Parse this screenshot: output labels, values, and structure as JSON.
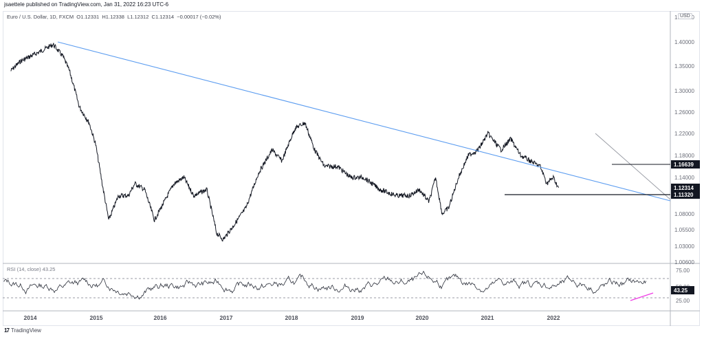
{
  "publisher_line": "jsaettele published on TradingView.com, Jan 31, 2022 16:23 UTC-6",
  "legend": {
    "symbol": "Euro / U.S. Dollar, 1D, FXCM",
    "ohlc": "O1.12331  H1.12338  L1.12312  C1.12314  −0.00017 (−0.02%)"
  },
  "currency_badge": "USD",
  "rsi_legend": "RSI (14, close)  43.25",
  "branding": "TradingView",
  "colors": {
    "price_line": "#131722",
    "long_trendline": "#5b9cf0",
    "short_trendline": "#9598a1",
    "horizontal_levels": "#131722",
    "rsi_divergence": "#f03ce6",
    "tag_bg": "#131722"
  },
  "price_tags": [
    {
      "label": "1.16639",
      "y": 239
    },
    {
      "label": "1.12314",
      "y": 273
    },
    {
      "label": "1.11320",
      "y": 283
    }
  ],
  "rsi_tag": {
    "label": "43.25",
    "y": 422
  },
  "chart_data": [
    {
      "type": "line",
      "title": "Euro / U.S. Dollar, 1D, FXCM",
      "xlabel": "",
      "ylabel": "USD",
      "x_ticks": [
        "2014",
        "2015",
        "2016",
        "2017",
        "2018",
        "2019",
        "2020",
        "2021",
        "2022"
      ],
      "y_ticks": [
        "1.40000",
        "1.35000",
        "1.30000",
        "1.26000",
        "1.22000",
        "1.18000",
        "1.14000",
        "1.08000",
        "1.05500",
        "1.03000",
        "1.00600"
      ],
      "ylim": [
        1.006,
        1.42
      ],
      "grid": false,
      "series": [
        {
          "name": "EURUSD close",
          "x": [
            2013.7,
            2013.85,
            2014.0,
            2014.15,
            2014.35,
            2014.5,
            2014.6,
            2014.75,
            2014.9,
            2015.0,
            2015.1,
            2015.2,
            2015.35,
            2015.5,
            2015.6,
            2015.75,
            2015.9,
            2016.0,
            2016.2,
            2016.35,
            2016.5,
            2016.7,
            2016.85,
            2016.95,
            2017.1,
            2017.3,
            2017.5,
            2017.7,
            2017.85,
            2018.05,
            2018.2,
            2018.35,
            2018.5,
            2018.7,
            2018.9,
            2019.1,
            2019.35,
            2019.6,
            2019.8,
            2019.95,
            2020.1,
            2020.2,
            2020.3,
            2020.4,
            2020.55,
            2020.7,
            2020.85,
            2021.0,
            2021.2,
            2021.35,
            2021.5,
            2021.65,
            2021.8,
            2021.9,
            2022.0,
            2022.08
          ],
          "values": [
            1.34,
            1.36,
            1.37,
            1.38,
            1.395,
            1.37,
            1.34,
            1.27,
            1.24,
            1.2,
            1.13,
            1.07,
            1.11,
            1.11,
            1.13,
            1.12,
            1.07,
            1.09,
            1.13,
            1.14,
            1.11,
            1.12,
            1.05,
            1.04,
            1.06,
            1.09,
            1.15,
            1.19,
            1.17,
            1.23,
            1.24,
            1.19,
            1.16,
            1.16,
            1.14,
            1.14,
            1.12,
            1.11,
            1.11,
            1.12,
            1.1,
            1.14,
            1.08,
            1.09,
            1.14,
            1.18,
            1.19,
            1.22,
            1.19,
            1.21,
            1.18,
            1.17,
            1.16,
            1.13,
            1.14,
            1.123
          ]
        }
      ],
      "annotations": [
        {
          "type": "trendline",
          "name": "long-term descending trendline",
          "from": [
            2014.35,
            1.395
          ],
          "to": [
            2022.6,
            1.105
          ],
          "color": "#5b9cf0"
        },
        {
          "type": "trendline",
          "name": "2021 descending trendline",
          "from": [
            2021.45,
            1.22
          ],
          "to": [
            2022.5,
            1.113
          ],
          "color": "#9598a1"
        },
        {
          "type": "hline",
          "name": "level 1.16639",
          "value": 1.16639,
          "from": 2021.5
        },
        {
          "type": "hline",
          "name": "level 1.11320",
          "value": 1.1132,
          "from": 2020.2
        }
      ],
      "last_value": 1.12314
    },
    {
      "type": "line",
      "title": "RSI (14, close)",
      "y_ticks": [
        "75.00",
        "50.00",
        "25.00"
      ],
      "ylim": [
        10,
        90
      ],
      "bands": [
        70,
        30
      ],
      "last_value": 43.25,
      "annotations": [
        {
          "type": "trendline",
          "name": "bullish divergence line",
          "color": "#f03ce6",
          "from": [
            2021.85,
            25
          ],
          "to": [
            2022.35,
            34
          ]
        }
      ]
    }
  ]
}
